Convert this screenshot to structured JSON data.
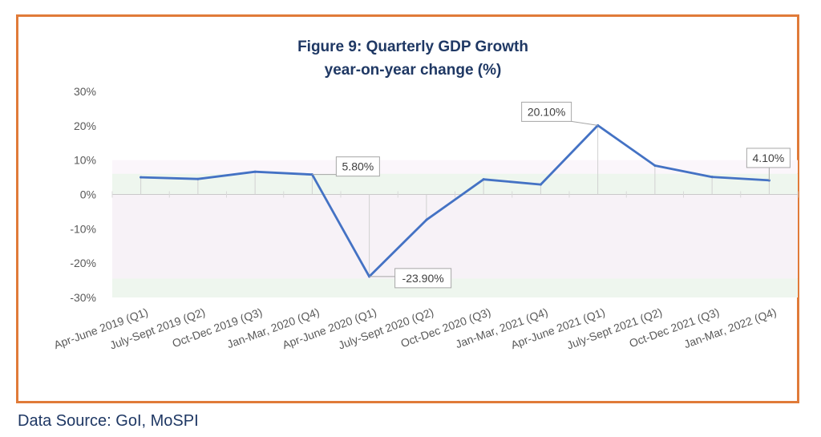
{
  "chart_data": {
    "type": "line",
    "title": "Figure 9: Quarterly GDP Growth",
    "subtitle": "year-on-year change (%)",
    "categories": [
      "Apr-June 2019 (Q1)",
      "July-Sept 2019 (Q2)",
      "Oct-Dec 2019 (Q3)",
      "Jan-Mar, 2020 (Q4)",
      "Apr-June 2020 (Q1)",
      "July-Sept 2020 (Q2)",
      "Oct-Dec 2020 (Q3)",
      "Jan-Mar, 2021 (Q4)",
      "Apr-June 2021 (Q1)",
      "July-Sept 2021 (Q2)",
      "Oct-Dec 2021 (Q3)",
      "Jan-Mar, 2022 (Q4)"
    ],
    "series": [
      {
        "values": [
          5.0,
          4.5,
          6.6,
          5.8,
          -23.9,
          -7.4,
          4.4,
          2.9,
          20.1,
          8.4,
          5.1,
          4.1
        ]
      }
    ],
    "data_labels": [
      {
        "index": 3,
        "text": "5.80%"
      },
      {
        "index": 4,
        "text": "-23.90%"
      },
      {
        "index": 8,
        "text": "20.10%"
      },
      {
        "index": 11,
        "text": "4.10%"
      }
    ],
    "yticks": [
      30,
      20,
      10,
      0,
      -10,
      -20,
      -30
    ],
    "ytick_labels": [
      "30%",
      "20%",
      "10%",
      "0%",
      "-10%",
      "-20%",
      "-30%"
    ],
    "ylim": [
      -30,
      30
    ],
    "line_color": "#4472c4",
    "grid": true
  },
  "footer": {
    "source": "Data Source: GoI, MoSPI"
  },
  "colors": {
    "frame": "#e07b39",
    "title": "#1f3864"
  }
}
